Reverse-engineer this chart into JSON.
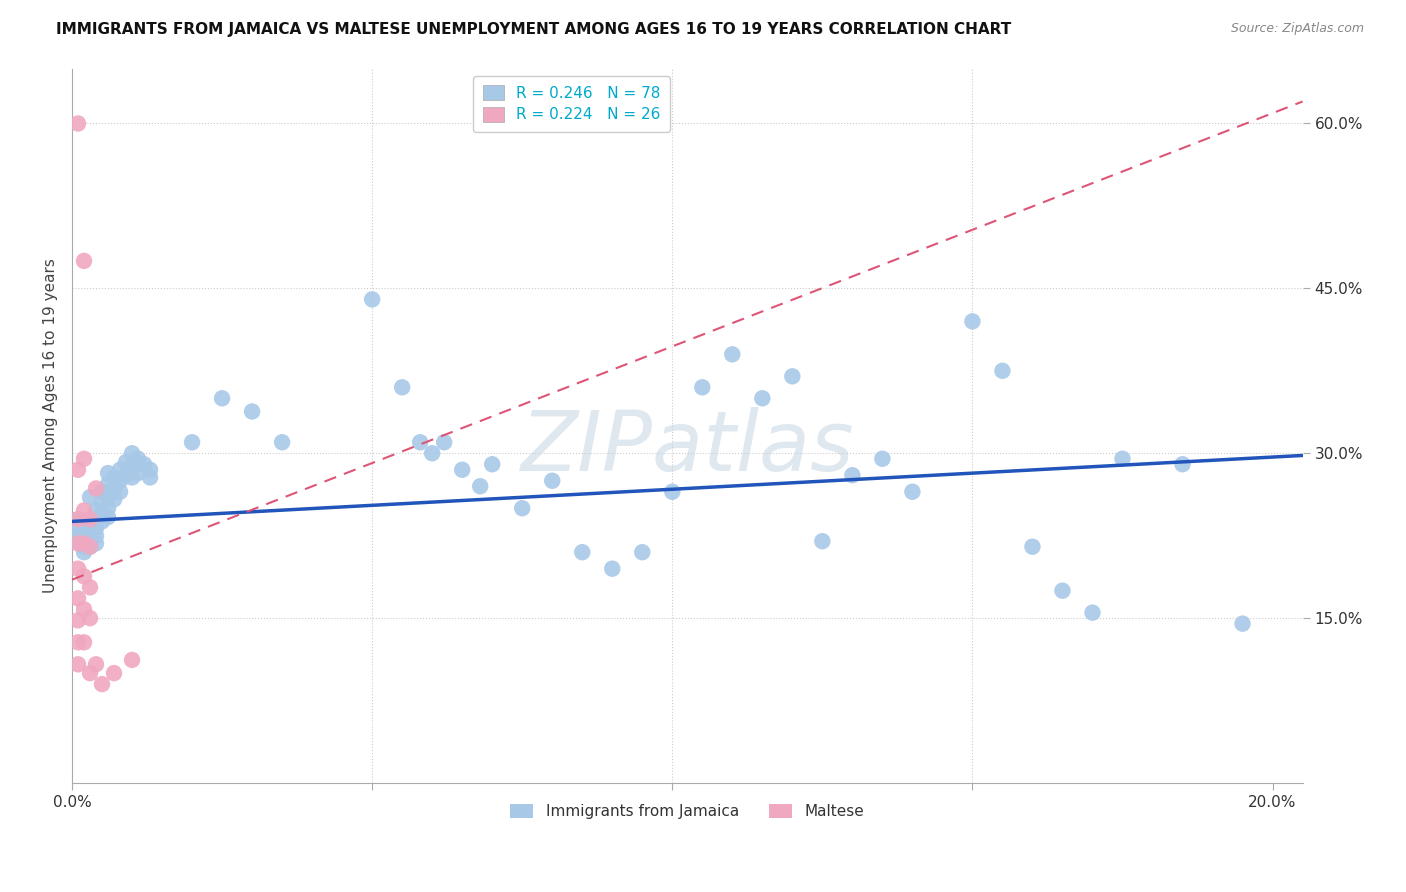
{
  "title": "IMMIGRANTS FROM JAMAICA VS MALTESE UNEMPLOYMENT AMONG AGES 16 TO 19 YEARS CORRELATION CHART",
  "source": "Source: ZipAtlas.com",
  "ylabel": "Unemployment Among Ages 16 to 19 years",
  "xlim": [
    0.0,
    0.21
  ],
  "ylim": [
    -0.01,
    0.67
  ],
  "plot_xlim": [
    0.0,
    0.205
  ],
  "plot_ylim": [
    0.0,
    0.65
  ],
  "blue_color": "#a8c8e8",
  "pink_color": "#f0a8c0",
  "blue_line_color": "#2255bb",
  "pink_line_color": "#dd5577",
  "blue_R_text": "0.246",
  "blue_N_text": "78",
  "pink_R_text": "0.224",
  "pink_N_text": "26",
  "legend_labels_bottom": [
    "Immigrants from Jamaica",
    "Maltese"
  ],
  "watermark": "ZIPatlas",
  "watermark_color": "#c0d0e0",
  "blue_scatter": [
    [
      0.001,
      0.24
    ],
    [
      0.001,
      0.232
    ],
    [
      0.001,
      0.225
    ],
    [
      0.001,
      0.22
    ],
    [
      0.002,
      0.238
    ],
    [
      0.002,
      0.228
    ],
    [
      0.002,
      0.22
    ],
    [
      0.002,
      0.215
    ],
    [
      0.002,
      0.21
    ],
    [
      0.003,
      0.235
    ],
    [
      0.003,
      0.228
    ],
    [
      0.003,
      0.22
    ],
    [
      0.003,
      0.215
    ],
    [
      0.003,
      0.26
    ],
    [
      0.004,
      0.248
    ],
    [
      0.004,
      0.24
    ],
    [
      0.004,
      0.232
    ],
    [
      0.004,
      0.225
    ],
    [
      0.004,
      0.218
    ],
    [
      0.005,
      0.265
    ],
    [
      0.005,
      0.255
    ],
    [
      0.005,
      0.245
    ],
    [
      0.005,
      0.238
    ],
    [
      0.006,
      0.282
    ],
    [
      0.006,
      0.272
    ],
    [
      0.006,
      0.26
    ],
    [
      0.006,
      0.25
    ],
    [
      0.006,
      0.242
    ],
    [
      0.007,
      0.278
    ],
    [
      0.007,
      0.268
    ],
    [
      0.007,
      0.258
    ],
    [
      0.008,
      0.285
    ],
    [
      0.008,
      0.275
    ],
    [
      0.008,
      0.265
    ],
    [
      0.009,
      0.292
    ],
    [
      0.009,
      0.28
    ],
    [
      0.01,
      0.3
    ],
    [
      0.01,
      0.288
    ],
    [
      0.01,
      0.278
    ],
    [
      0.011,
      0.295
    ],
    [
      0.011,
      0.282
    ],
    [
      0.012,
      0.29
    ],
    [
      0.013,
      0.285
    ],
    [
      0.013,
      0.278
    ],
    [
      0.02,
      0.31
    ],
    [
      0.025,
      0.35
    ],
    [
      0.03,
      0.338
    ],
    [
      0.035,
      0.31
    ],
    [
      0.05,
      0.44
    ],
    [
      0.055,
      0.36
    ],
    [
      0.058,
      0.31
    ],
    [
      0.06,
      0.3
    ],
    [
      0.062,
      0.31
    ],
    [
      0.065,
      0.285
    ],
    [
      0.068,
      0.27
    ],
    [
      0.07,
      0.29
    ],
    [
      0.075,
      0.25
    ],
    [
      0.08,
      0.275
    ],
    [
      0.085,
      0.21
    ],
    [
      0.09,
      0.195
    ],
    [
      0.095,
      0.21
    ],
    [
      0.1,
      0.265
    ],
    [
      0.105,
      0.36
    ],
    [
      0.11,
      0.39
    ],
    [
      0.115,
      0.35
    ],
    [
      0.12,
      0.37
    ],
    [
      0.125,
      0.22
    ],
    [
      0.13,
      0.28
    ],
    [
      0.135,
      0.295
    ],
    [
      0.14,
      0.265
    ],
    [
      0.15,
      0.42
    ],
    [
      0.155,
      0.375
    ],
    [
      0.16,
      0.215
    ],
    [
      0.165,
      0.175
    ],
    [
      0.17,
      0.155
    ],
    [
      0.175,
      0.295
    ],
    [
      0.185,
      0.29
    ],
    [
      0.195,
      0.145
    ]
  ],
  "pink_scatter": [
    [
      0.001,
      0.6
    ],
    [
      0.002,
      0.475
    ],
    [
      0.001,
      0.285
    ],
    [
      0.001,
      0.24
    ],
    [
      0.001,
      0.218
    ],
    [
      0.001,
      0.195
    ],
    [
      0.001,
      0.168
    ],
    [
      0.001,
      0.148
    ],
    [
      0.001,
      0.128
    ],
    [
      0.001,
      0.108
    ],
    [
      0.002,
      0.295
    ],
    [
      0.002,
      0.248
    ],
    [
      0.002,
      0.218
    ],
    [
      0.002,
      0.188
    ],
    [
      0.002,
      0.158
    ],
    [
      0.002,
      0.128
    ],
    [
      0.003,
      0.24
    ],
    [
      0.003,
      0.215
    ],
    [
      0.003,
      0.178
    ],
    [
      0.003,
      0.15
    ],
    [
      0.003,
      0.1
    ],
    [
      0.004,
      0.268
    ],
    [
      0.004,
      0.108
    ],
    [
      0.005,
      0.09
    ],
    [
      0.007,
      0.1
    ],
    [
      0.01,
      0.112
    ]
  ],
  "blue_trend_x": [
    0.0,
    0.205
  ],
  "blue_trend_y": [
    0.238,
    0.298
  ],
  "pink_trend_x": [
    0.0,
    0.205
  ],
  "pink_trend_y": [
    0.185,
    0.62
  ]
}
